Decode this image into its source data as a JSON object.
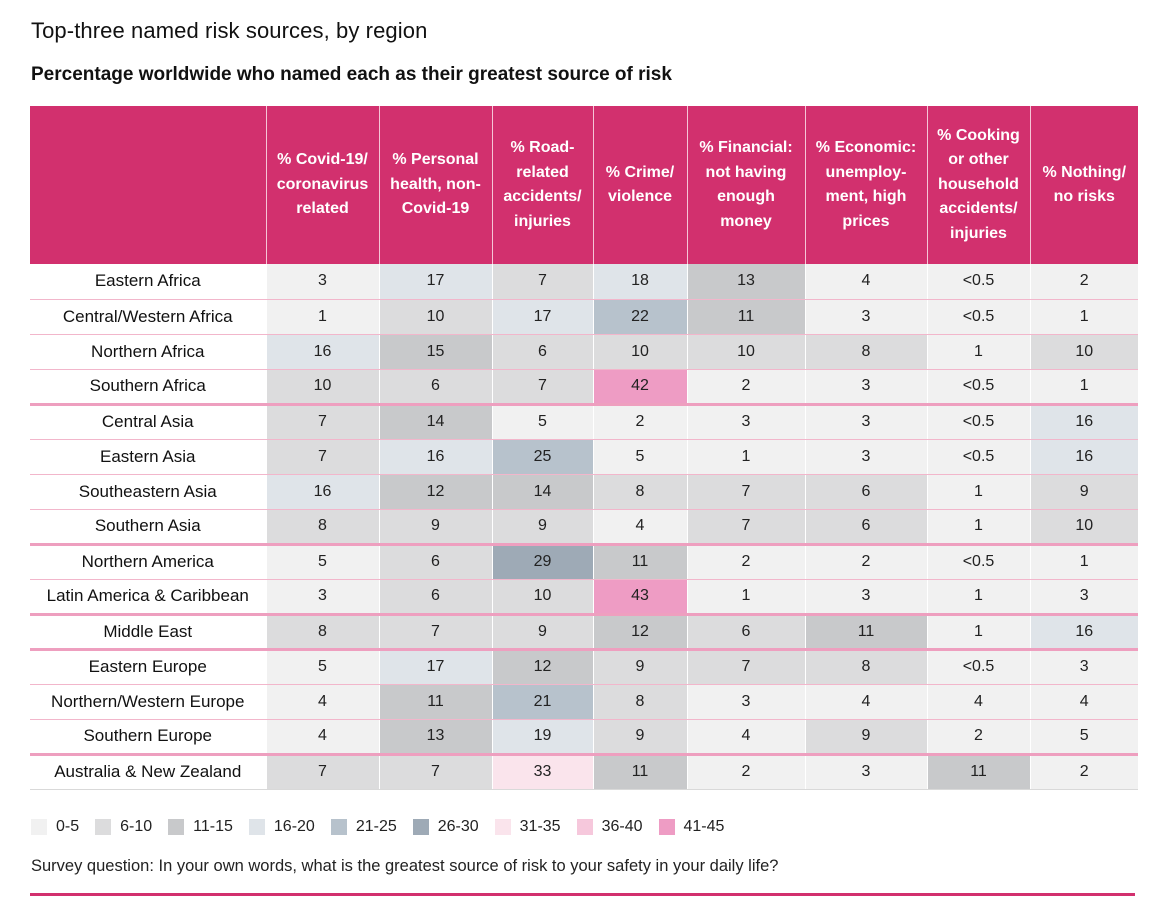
{
  "title": "Top-three named risk sources, by region",
  "subtitle": "Percentage worldwide who named each as their greatest source of risk",
  "note": "Survey question: In your own words, what is the greatest source of risk to your safety in your daily life?",
  "colors": {
    "header": "#d2306e",
    "bins": {
      "0-5": "#f1f1f1",
      "6-10": "#dcdcdd",
      "11-15": "#c8c9cb",
      "16-20": "#dfe4e9",
      "21-25": "#b7c2cc",
      "26-30": "#9eaab6",
      "31-35": "#fae4ec",
      "36-40": "#f6c8dc",
      "41-45": "#ee9cc4"
    }
  },
  "chart_data": {
    "type": "heatmap",
    "title": "Top-three named risk sources, by region",
    "subtitle": "Percentage worldwide who named each as their greatest source of risk",
    "columns": [
      "% Covid-19/ coronavirus related",
      "% Personal health, non-Covid-19",
      "% Road-related accidents/ injuries",
      "% Crime/ violence",
      "% Financial: not having enough money",
      "% Economic: unemploy-ment, high prices",
      "% Cooking or other household accidents/ injuries",
      "% Nothing/ no risks"
    ],
    "rows": [
      {
        "region": "Eastern Africa",
        "values": [
          "3",
          "17",
          "7",
          "18",
          "13",
          "4",
          "<0.5",
          "2"
        ],
        "bins": [
          "0-5",
          "16-20",
          "6-10",
          "16-20",
          "11-15",
          "0-5",
          "0-5",
          "0-5"
        ]
      },
      {
        "region": "Central/Western Africa",
        "values": [
          "1",
          "10",
          "17",
          "22",
          "11",
          "3",
          "<0.5",
          "1"
        ],
        "bins": [
          "0-5",
          "6-10",
          "16-20",
          "21-25",
          "11-15",
          "0-5",
          "0-5",
          "0-5"
        ]
      },
      {
        "region": "Northern Africa",
        "values": [
          "16",
          "15",
          "6",
          "10",
          "10",
          "8",
          "1",
          "10"
        ],
        "bins": [
          "16-20",
          "11-15",
          "6-10",
          "6-10",
          "6-10",
          "6-10",
          "0-5",
          "6-10"
        ]
      },
      {
        "region": "Southern Africa",
        "values": [
          "10",
          "6",
          "7",
          "42",
          "2",
          "3",
          "<0.5",
          "1"
        ],
        "bins": [
          "6-10",
          "6-10",
          "6-10",
          "41-45",
          "0-5",
          "0-5",
          "0-5",
          "0-5"
        ]
      },
      {
        "region": "Central Asia",
        "values": [
          "7",
          "14",
          "5",
          "2",
          "3",
          "3",
          "<0.5",
          "16"
        ],
        "bins": [
          "6-10",
          "11-15",
          "0-5",
          "0-5",
          "0-5",
          "0-5",
          "0-5",
          "16-20"
        ]
      },
      {
        "region": "Eastern Asia",
        "values": [
          "7",
          "16",
          "25",
          "5",
          "1",
          "3",
          "<0.5",
          "16"
        ],
        "bins": [
          "6-10",
          "16-20",
          "21-25",
          "0-5",
          "0-5",
          "0-5",
          "0-5",
          "16-20"
        ]
      },
      {
        "region": "Southeastern Asia",
        "values": [
          "16",
          "12",
          "14",
          "8",
          "7",
          "6",
          "1",
          "9"
        ],
        "bins": [
          "16-20",
          "11-15",
          "11-15",
          "6-10",
          "6-10",
          "6-10",
          "0-5",
          "6-10"
        ]
      },
      {
        "region": "Southern Asia",
        "values": [
          "8",
          "9",
          "9",
          "4",
          "7",
          "6",
          "1",
          "10"
        ],
        "bins": [
          "6-10",
          "6-10",
          "6-10",
          "0-5",
          "6-10",
          "6-10",
          "0-5",
          "6-10"
        ]
      },
      {
        "region": "Northern America",
        "values": [
          "5",
          "6",
          "29",
          "11",
          "2",
          "2",
          "<0.5",
          "1"
        ],
        "bins": [
          "0-5",
          "6-10",
          "26-30",
          "11-15",
          "0-5",
          "0-5",
          "0-5",
          "0-5"
        ]
      },
      {
        "region": "Latin America & Caribbean",
        "values": [
          "3",
          "6",
          "10",
          "43",
          "1",
          "3",
          "1",
          "3"
        ],
        "bins": [
          "0-5",
          "6-10",
          "6-10",
          "41-45",
          "0-5",
          "0-5",
          "0-5",
          "0-5"
        ]
      },
      {
        "region": "Middle East",
        "values": [
          "8",
          "7",
          "9",
          "12",
          "6",
          "11",
          "1",
          "16"
        ],
        "bins": [
          "6-10",
          "6-10",
          "6-10",
          "11-15",
          "6-10",
          "11-15",
          "0-5",
          "16-20"
        ]
      },
      {
        "region": "Eastern Europe",
        "values": [
          "5",
          "17",
          "12",
          "9",
          "7",
          "8",
          "<0.5",
          "3"
        ],
        "bins": [
          "0-5",
          "16-20",
          "11-15",
          "6-10",
          "6-10",
          "6-10",
          "0-5",
          "0-5"
        ]
      },
      {
        "region": "Northern/Western Europe",
        "values": [
          "4",
          "11",
          "21",
          "8",
          "3",
          "4",
          "4",
          "4"
        ],
        "bins": [
          "0-5",
          "11-15",
          "21-25",
          "6-10",
          "0-5",
          "0-5",
          "0-5",
          "0-5"
        ]
      },
      {
        "region": "Southern Europe",
        "values": [
          "4",
          "13",
          "19",
          "9",
          "4",
          "9",
          "2",
          "5"
        ],
        "bins": [
          "0-5",
          "11-15",
          "16-20",
          "6-10",
          "0-5",
          "6-10",
          "0-5",
          "0-5"
        ]
      },
      {
        "region": "Australia & New Zealand",
        "values": [
          "7",
          "7",
          "33",
          "11",
          "2",
          "3",
          "11",
          "2"
        ],
        "bins": [
          "6-10",
          "6-10",
          "31-35",
          "11-15",
          "0-5",
          "0-5",
          "11-15",
          "0-5"
        ]
      }
    ],
    "legend": [
      "0-5",
      "6-10",
      "11-15",
      "16-20",
      "21-25",
      "26-30",
      "31-35",
      "36-40",
      "41-45"
    ]
  }
}
